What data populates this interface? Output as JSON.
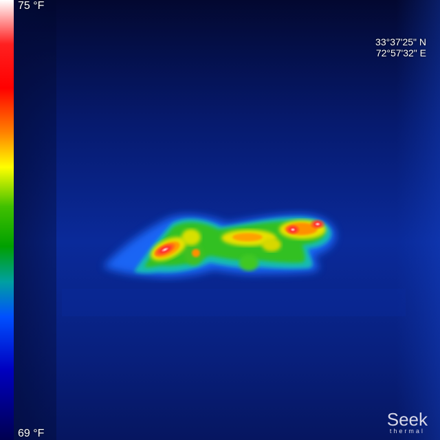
{
  "scale": {
    "max_label": "75 °F",
    "min_label": "69 °F",
    "colors": [
      "#ffffff",
      "#ff2020",
      "#ff0000",
      "#ff8000",
      "#ffff00",
      "#40c000",
      "#00a000",
      "#00a0a0",
      "#0050ff",
      "#0000c0",
      "#000050"
    ]
  },
  "gps": {
    "latitude": "33°37'25\" N",
    "longitude": "72°57'32\" E"
  },
  "brand": {
    "name": "Seek",
    "tagline": "thermal"
  },
  "scene": {
    "subject": "animal-heat-signature",
    "background_color": "#0a1a8a"
  }
}
